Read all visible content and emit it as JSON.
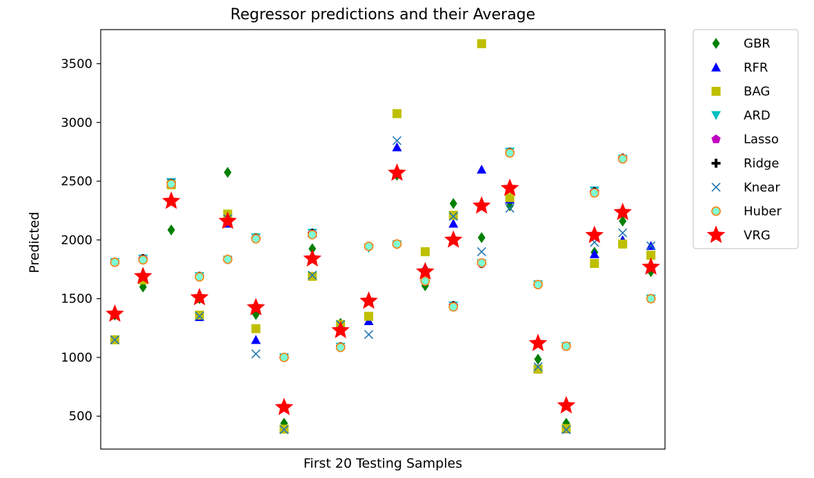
{
  "chart_data": {
    "type": "scatter",
    "title": "Regressor predictions and their Average",
    "xlabel": "First 20 Testing Samples",
    "ylabel": "Predicted",
    "ylim": [
      220,
      3790
    ],
    "xlim": [
      0.5,
      20.5
    ],
    "yticks": [
      500,
      1000,
      1500,
      2000,
      2500,
      3000,
      3500
    ],
    "grid": false,
    "legend_position": "outside-top-right",
    "x": [
      1,
      2,
      3,
      4,
      5,
      6,
      7,
      8,
      9,
      10,
      11,
      12,
      13,
      14,
      15,
      16,
      17,
      18,
      19,
      20
    ],
    "series": [
      {
        "name": "GBR",
        "marker": "diamond",
        "color": "#008000",
        "values": [
          1360,
          1600,
          2085,
          1500,
          2575,
          1365,
          440,
          1925,
          1290,
          1340,
          2550,
          1610,
          2310,
          2020,
          2290,
          985,
          440,
          1895,
          2160,
          1730
        ]
      },
      {
        "name": "RFR",
        "marker": "triangle-up",
        "color": "#0000ff",
        "values": [
          1150,
          1690,
          2480,
          1345,
          2140,
          1150,
          390,
          2060,
          1280,
          1310,
          2790,
          1765,
          2140,
          2600,
          2345,
          905,
          390,
          1880,
          2000,
          1950
        ]
      },
      {
        "name": "BAG",
        "marker": "square",
        "color": "#bfbf00",
        "values": [
          1150,
          1660,
          2470,
          1360,
          2220,
          1245,
          390,
          1690,
          1280,
          1350,
          3075,
          1900,
          2210,
          3670,
          2360,
          900,
          395,
          1800,
          1965,
          1870
        ]
      },
      {
        "name": "ARD",
        "marker": "triangle-down",
        "color": "#00bfbf",
        "values": [
          1810,
          1840,
          2490,
          1690,
          1830,
          2020,
          1000,
          2060,
          1090,
          1930,
          1960,
          1650,
          1440,
          1800,
          2750,
          1620,
          1095,
          2420,
          2690,
          1500
        ]
      },
      {
        "name": "Lasso",
        "marker": "pentagon",
        "color": "#bf00bf",
        "values": [
          1810,
          1840,
          2480,
          1690,
          1835,
          2015,
          1000,
          2055,
          1090,
          1945,
          1965,
          1650,
          1440,
          1800,
          2745,
          1620,
          1095,
          2410,
          2695,
          1500
        ]
      },
      {
        "name": "Ridge",
        "marker": "plus",
        "color": "#000000",
        "values": [
          1810,
          1840,
          2480,
          1690,
          1835,
          2015,
          1000,
          2055,
          1090,
          1945,
          1965,
          1650,
          1440,
          1800,
          2745,
          1620,
          1095,
          2410,
          2695,
          1500
        ]
      },
      {
        "name": "Knear",
        "marker": "x",
        "color": "#1f77b4",
        "values": [
          1150,
          1680,
          2490,
          1350,
          2180,
          1030,
          385,
          1700,
          1280,
          1195,
          2845,
          1720,
          2200,
          1900,
          2270,
          920,
          385,
          1980,
          2060,
          1950
        ]
      },
      {
        "name": "Huber",
        "marker": "circle",
        "color": "#ff7f0e",
        "fill": "#7fffd4",
        "values": [
          1810,
          1830,
          2475,
          1685,
          1835,
          2010,
          1000,
          2045,
          1085,
          1945,
          1965,
          1650,
          1430,
          1805,
          2740,
          1620,
          1095,
          2400,
          2690,
          1500
        ]
      },
      {
        "name": "VRG",
        "marker": "star",
        "color": "#ff0000",
        "values": [
          1370,
          1690,
          2330,
          1510,
          2160,
          1425,
          575,
          1840,
          1230,
          1480,
          2570,
          1730,
          2000,
          2290,
          2440,
          1120,
          590,
          2040,
          2235,
          1770
        ]
      }
    ]
  }
}
